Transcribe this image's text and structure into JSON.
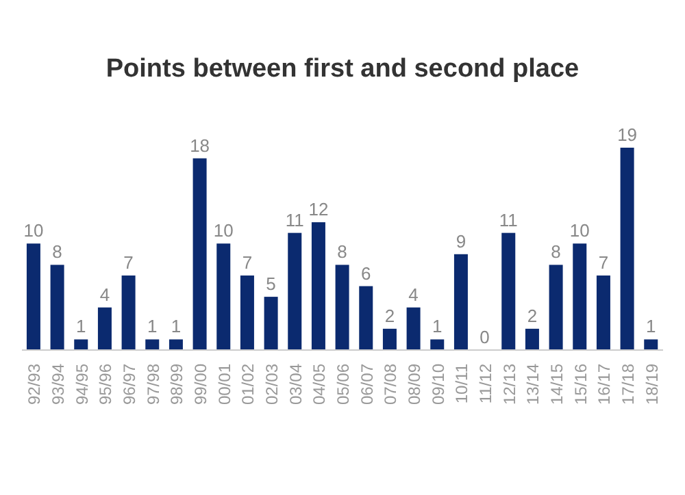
{
  "chart_data": {
    "type": "bar",
    "title": "Points between first and second place",
    "categories": [
      "92/93",
      "93/94",
      "94/95",
      "95/96",
      "96/97",
      "97/98",
      "98/99",
      "99/00",
      "00/01",
      "01/02",
      "02/03",
      "03/04",
      "04/05",
      "05/06",
      "06/07",
      "07/08",
      "08/09",
      "09/10",
      "10/11",
      "11/12",
      "12/13",
      "13/14",
      "14/15",
      "15/16",
      "16/17",
      "17/18",
      "18/19"
    ],
    "values": [
      10,
      8,
      1,
      4,
      7,
      1,
      1,
      18,
      10,
      7,
      5,
      11,
      12,
      8,
      6,
      2,
      4,
      1,
      9,
      0,
      11,
      2,
      8,
      10,
      7,
      19,
      1
    ],
    "color": "#0b2a6f",
    "data_labels": true
  }
}
